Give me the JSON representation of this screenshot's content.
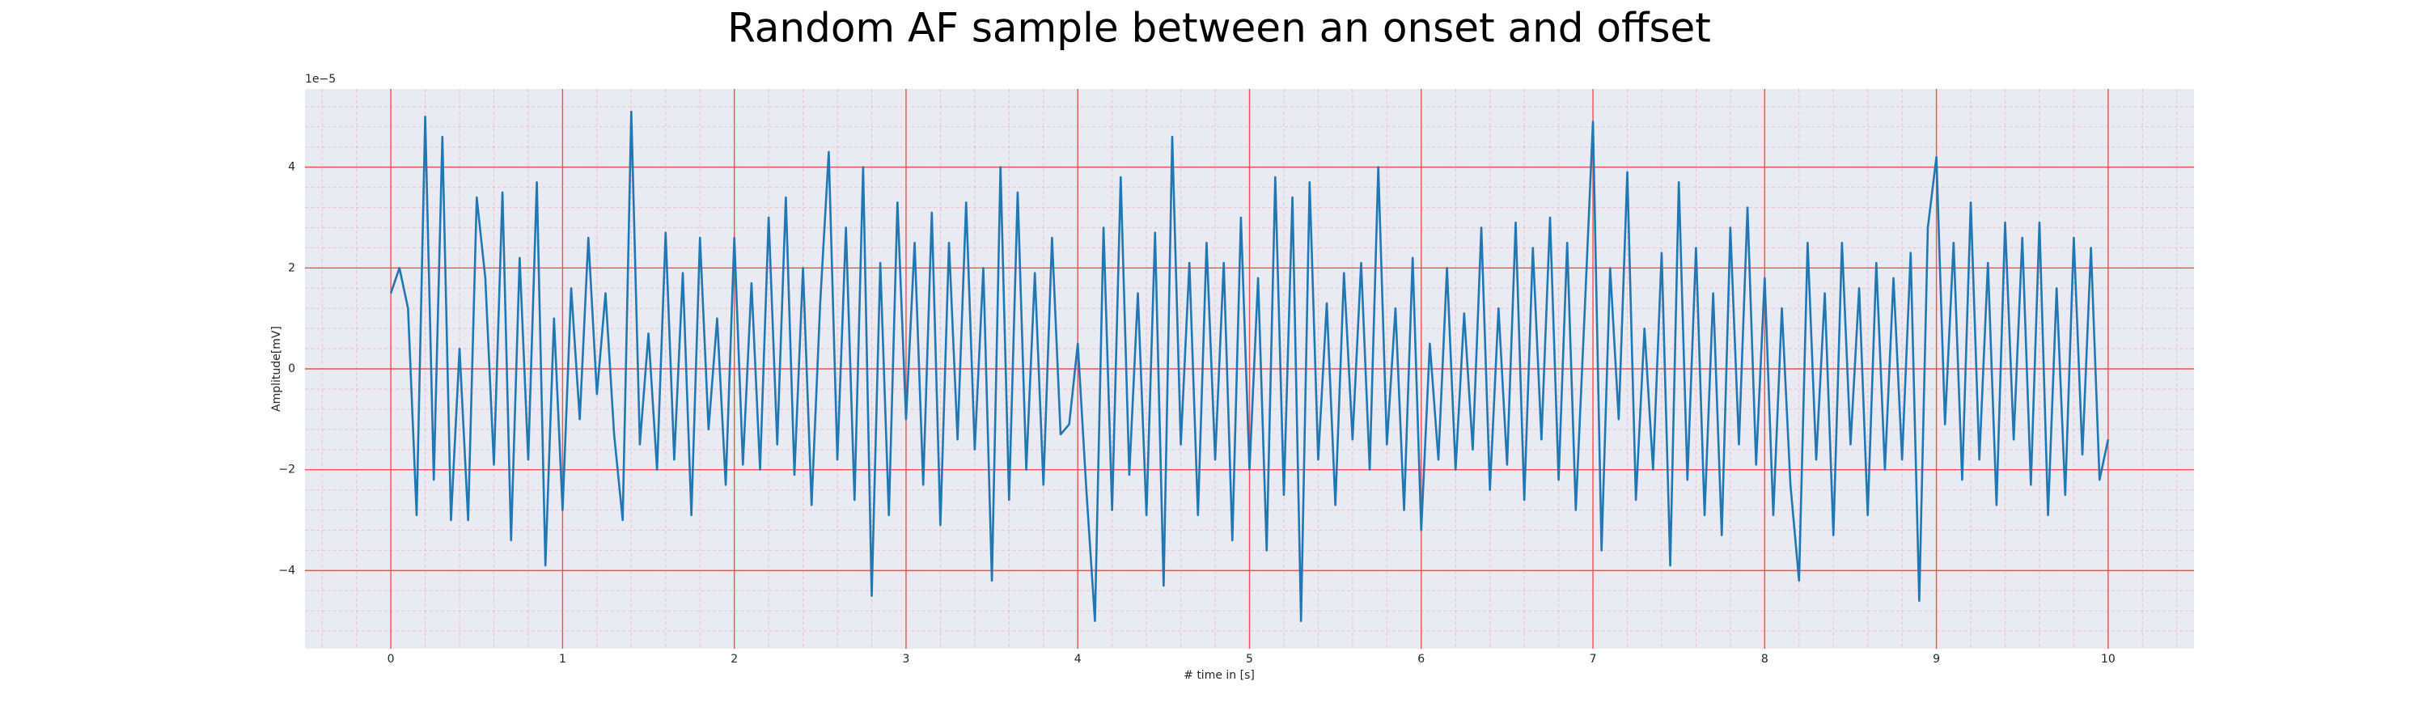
{
  "chart_data": {
    "type": "line",
    "title": "Random AF sample between an onset and offset",
    "xlabel": "# time in [s]",
    "ylabel": "Amplitude[mV]",
    "offset_label": "1e−5",
    "x": [
      0,
      0.05,
      0.1,
      0.15,
      0.2,
      0.25,
      0.3,
      0.35,
      0.4,
      0.45,
      0.5,
      0.55,
      0.6,
      0.65,
      0.7,
      0.75,
      0.8,
      0.85,
      0.9,
      0.95,
      1,
      1.05,
      1.1,
      1.15,
      1.2,
      1.25,
      1.3,
      1.35,
      1.4,
      1.45,
      1.5,
      1.55,
      1.6,
      1.65,
      1.7,
      1.75,
      1.8,
      1.85,
      1.9,
      1.95,
      2,
      2.05,
      2.1,
      2.15,
      2.2,
      2.25,
      2.3,
      2.35,
      2.4,
      2.45,
      2.5,
      2.55,
      2.6,
      2.65,
      2.7,
      2.75,
      2.8,
      2.85,
      2.9,
      2.95,
      3,
      3.05,
      3.1,
      3.15,
      3.2,
      3.25,
      3.3,
      3.35,
      3.4,
      3.45,
      3.5,
      3.55,
      3.6,
      3.65,
      3.7,
      3.75,
      3.8,
      3.85,
      3.9,
      3.95,
      4,
      4.05,
      4.1,
      4.15,
      4.2,
      4.25,
      4.3,
      4.35,
      4.4,
      4.45,
      4.5,
      4.55,
      4.6,
      4.65,
      4.7,
      4.75,
      4.8,
      4.85,
      4.9,
      4.95,
      5,
      5.05,
      5.1,
      5.15,
      5.2,
      5.25,
      5.3,
      5.35,
      5.4,
      5.45,
      5.5,
      5.55,
      5.6,
      5.65,
      5.7,
      5.75,
      5.8,
      5.85,
      5.9,
      5.95,
      6,
      6.05,
      6.1,
      6.15,
      6.2,
      6.25,
      6.3,
      6.35,
      6.4,
      6.45,
      6.5,
      6.55,
      6.6,
      6.65,
      6.7,
      6.75,
      6.8,
      6.85,
      6.9,
      6.95,
      7,
      7.05,
      7.1,
      7.15,
      7.2,
      7.25,
      7.3,
      7.35,
      7.4,
      7.45,
      7.5,
      7.55,
      7.6,
      7.65,
      7.7,
      7.75,
      7.8,
      7.85,
      7.9,
      7.95,
      8,
      8.05,
      8.1,
      8.15,
      8.2,
      8.25,
      8.3,
      8.35,
      8.4,
      8.45,
      8.5,
      8.55,
      8.6,
      8.65,
      8.7,
      8.75,
      8.8,
      8.85,
      8.9,
      8.95,
      9,
      9.05,
      9.1,
      9.15,
      9.2,
      9.25,
      9.3,
      9.35,
      9.4,
      9.45,
      9.5,
      9.55,
      9.6,
      9.65,
      9.7,
      9.75,
      9.8,
      9.85,
      9.9,
      9.95,
      10
    ],
    "series": [
      {
        "color": "#1f77b4",
        "values": [
          1.5,
          2.0,
          1.2,
          -2.9,
          5.0,
          -2.2,
          4.6,
          -3.0,
          0.4,
          -3.0,
          3.4,
          1.8,
          -1.9,
          3.5,
          -3.4,
          2.2,
          -1.8,
          3.7,
          -3.9,
          1.0,
          -2.8,
          1.6,
          -1.0,
          2.6,
          -0.5,
          1.5,
          -1.3,
          -3.0,
          5.1,
          -1.5,
          0.7,
          -2.0,
          2.7,
          -1.8,
          1.9,
          -2.9,
          2.6,
          -1.2,
          1.0,
          -2.3,
          2.6,
          -1.9,
          1.7,
          -2.0,
          3.0,
          -1.5,
          3.4,
          -2.1,
          2.0,
          -2.7,
          1.3,
          4.3,
          -1.8,
          2.8,
          -2.6,
          4.0,
          -4.5,
          2.1,
          -2.9,
          3.3,
          -1.0,
          2.5,
          -2.3,
          3.1,
          -3.1,
          2.5,
          -1.4,
          3.3,
          -1.6,
          2.0,
          -4.2,
          4.0,
          -2.6,
          3.5,
          -2.0,
          1.9,
          -2.3,
          2.6,
          -1.3,
          -1.1,
          0.5,
          -2.4,
          -5.0,
          2.8,
          -2.8,
          3.8,
          -2.1,
          1.5,
          -2.9,
          2.7,
          -4.3,
          4.6,
          -1.5,
          2.1,
          -2.9,
          2.5,
          -1.8,
          2.1,
          -3.4,
          3.0,
          -2.0,
          1.8,
          -3.6,
          3.8,
          -2.5,
          3.4,
          -5.0,
          3.7,
          -1.8,
          1.3,
          -2.7,
          1.9,
          -1.4,
          2.1,
          -2.0,
          4.0,
          -1.5,
          1.2,
          -2.8,
          2.2,
          -3.2,
          0.5,
          -1.8,
          2.0,
          -2.0,
          1.1,
          -1.6,
          2.8,
          -2.4,
          1.2,
          -1.9,
          2.9,
          -2.6,
          2.4,
          -1.4,
          3.0,
          -2.2,
          2.5,
          -2.8,
          1.0,
          4.9,
          -3.6,
          2.0,
          -1.0,
          3.9,
          -2.6,
          0.8,
          -2.0,
          2.3,
          -3.9,
          3.7,
          -2.2,
          2.4,
          -2.9,
          1.5,
          -3.3,
          2.8,
          -1.5,
          3.2,
          -1.9,
          1.8,
          -2.9,
          1.2,
          -2.3,
          -4.2,
          2.5,
          -1.8,
          1.5,
          -3.3,
          2.5,
          -1.5,
          1.6,
          -2.9,
          2.1,
          -2.0,
          1.8,
          -1.8,
          2.3,
          -4.6,
          2.8,
          4.2,
          -1.1,
          2.5,
          -2.2,
          3.3,
          -1.8,
          2.1,
          -2.7,
          2.9,
          -1.4,
          2.6,
          -2.3,
          2.9,
          -2.9,
          1.6,
          -2.5,
          2.6,
          -1.7,
          2.4,
          -2.2,
          -1.4
        ]
      }
    ],
    "xlim": [
      -0.5,
      10.5
    ],
    "ylim": [
      -5.55,
      5.55
    ],
    "xticks": [
      0,
      1,
      2,
      3,
      4,
      5,
      6,
      7,
      8,
      9,
      10
    ],
    "yticks": [
      {
        "value": -4,
        "label": "−4"
      },
      {
        "value": -2,
        "label": "−2"
      },
      0,
      2,
      4
    ],
    "grid": true,
    "grid_color": "#f05050",
    "minor_grid": true,
    "minor_divisions": 5,
    "background": "#eaeaf2"
  }
}
